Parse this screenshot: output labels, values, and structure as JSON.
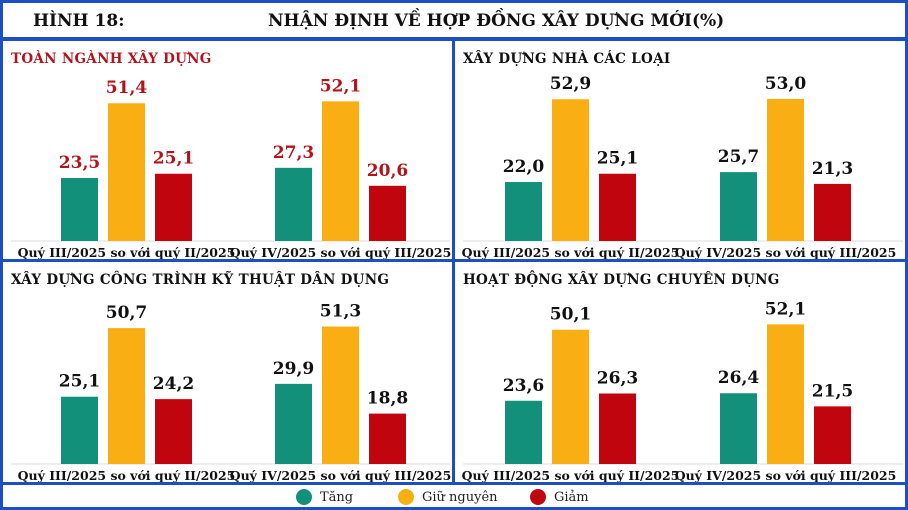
{
  "header": {
    "figure_label": "HÌNH 18:",
    "title": "NHẬN ĐỊNH VỀ HỢP ĐỒNG XÂY DỰNG MỚI(%)"
  },
  "colors": {
    "tang": "#12907a",
    "giu_nguyen": "#f9ae14",
    "giam": "#c0050f",
    "border": "#1d4fc4"
  },
  "legend": [
    {
      "label": "Tăng",
      "color": "#12907a"
    },
    {
      "label": "Giữ nguyên",
      "color": "#f9ae14"
    },
    {
      "label": "Giảm",
      "color": "#c0050f"
    }
  ],
  "chart_data": [
    {
      "type": "bar",
      "title": "TOÀN NGÀNH XÂY DỰNG",
      "categories": [
        "Quý III/2025 so với quý II/2025",
        "Quý IV/2025 so với quý III/2025"
      ],
      "series": [
        {
          "name": "Tăng",
          "values": [
            23.5,
            27.3
          ]
        },
        {
          "name": "Giữ nguyên",
          "values": [
            51.4,
            52.1
          ]
        },
        {
          "name": "Giảm",
          "values": [
            25.1,
            20.6
          ]
        }
      ],
      "value_labels": [
        [
          "23,5",
          "51,4",
          "25,1"
        ],
        [
          "27,3",
          "52,1",
          "20,6"
        ]
      ],
      "label_color": "#b3141b"
    },
    {
      "type": "bar",
      "title": "XÂY DỰNG NHÀ CÁC LOẠI",
      "categories": [
        "Quý III/2025 so với quý II/2025",
        "Quý IV/2025 so với quý III/2025"
      ],
      "series": [
        {
          "name": "Tăng",
          "values": [
            22.0,
            25.7
          ]
        },
        {
          "name": "Giữ nguyên",
          "values": [
            52.9,
            53.0
          ]
        },
        {
          "name": "Giảm",
          "values": [
            25.1,
            21.3
          ]
        }
      ],
      "value_labels": [
        [
          "22,0",
          "52,9",
          "25,1"
        ],
        [
          "25,7",
          "53,0",
          "21,3"
        ]
      ],
      "label_color": "#111111"
    },
    {
      "type": "bar",
      "title": "XÂY DỰNG CÔNG TRÌNH KỸ THUẬT DÂN DỤNG",
      "categories": [
        "Quý III/2025 so với quý II/2025",
        "Quý IV/2025 so với quý III/2025"
      ],
      "series": [
        {
          "name": "Tăng",
          "values": [
            25.1,
            29.9
          ]
        },
        {
          "name": "Giữ nguyên",
          "values": [
            50.7,
            51.3
          ]
        },
        {
          "name": "Giảm",
          "values": [
            24.2,
            18.8
          ]
        }
      ],
      "value_labels": [
        [
          "25,1",
          "50,7",
          "24,2"
        ],
        [
          "29,9",
          "51,3",
          "18,8"
        ]
      ],
      "label_color": "#111111"
    },
    {
      "type": "bar",
      "title": "HOẠT ĐỘNG XÂY DỰNG CHUYÊN DỤNG",
      "categories": [
        "Quý III/2025 so với quý II/2025",
        "Quý IV/2025 so với quý III/2025"
      ],
      "series": [
        {
          "name": "Tăng",
          "values": [
            23.6,
            26.4
          ]
        },
        {
          "name": "Giữ nguyên",
          "values": [
            50.1,
            52.1
          ]
        },
        {
          "name": "Giảm",
          "values": [
            26.3,
            21.5
          ]
        }
      ],
      "value_labels": [
        [
          "23,6",
          "50,1",
          "26,3"
        ],
        [
          "26,4",
          "52,1",
          "21,5"
        ]
      ],
      "label_color": "#111111"
    }
  ]
}
